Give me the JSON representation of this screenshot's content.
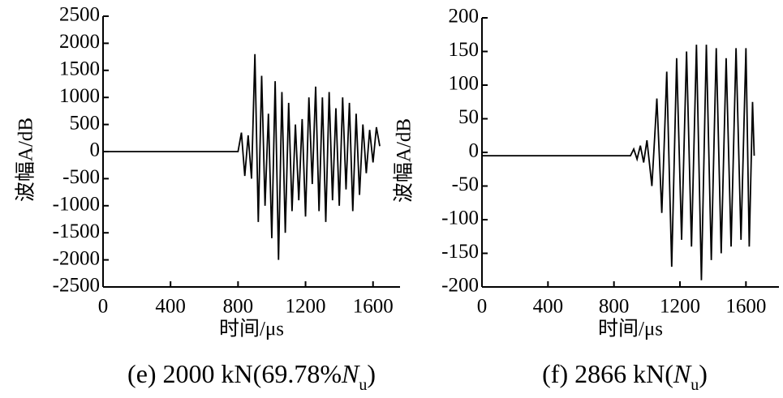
{
  "chart_data": [
    {
      "type": "line",
      "ylabel": "波幅A/dB",
      "xlabel": "时间/μs",
      "caption": [
        "(e) 2000 kN(69.78%",
        "N",
        "u",
        ")"
      ],
      "xlim": [
        0,
        1760
      ],
      "xticks": [
        0,
        400,
        800,
        1200,
        1600
      ],
      "ylim": [
        -2500,
        2500
      ],
      "yticks": [
        -2500,
        -2000,
        -1500,
        -1000,
        -500,
        0,
        500,
        1000,
        1500,
        2000,
        2500
      ],
      "series": [
        {
          "color": "#000000",
          "x": [
            0,
            800,
            820,
            840,
            860,
            880,
            900,
            920,
            940,
            960,
            980,
            1000,
            1020,
            1040,
            1060,
            1080,
            1100,
            1120,
            1140,
            1160,
            1180,
            1200,
            1220,
            1240,
            1260,
            1280,
            1300,
            1320,
            1340,
            1360,
            1380,
            1400,
            1420,
            1440,
            1460,
            1480,
            1500,
            1520,
            1540,
            1560,
            1580,
            1600,
            1620,
            1640
          ],
          "values": [
            0,
            0,
            350,
            -450,
            300,
            -500,
            1800,
            -1300,
            1400,
            -1000,
            700,
            -1600,
            1300,
            -2000,
            1100,
            -1500,
            900,
            -1100,
            500,
            -900,
            600,
            -1200,
            1000,
            -600,
            1200,
            -1100,
            1000,
            -1300,
            1100,
            -900,
            800,
            -1000,
            1000,
            -700,
            900,
            -1100,
            700,
            -800,
            500,
            -400,
            400,
            -200,
            450,
            100
          ]
        }
      ]
    },
    {
      "type": "line",
      "ylabel": "波幅A/dB",
      "xlabel": "时间/μs",
      "caption": [
        "(f) 2866 kN(",
        "N",
        "u",
        ")"
      ],
      "xlim": [
        0,
        1800
      ],
      "xticks": [
        0,
        400,
        800,
        1200,
        1600
      ],
      "ylim": [
        -200,
        200
      ],
      "yticks": [
        -200,
        -150,
        -100,
        -50,
        0,
        50,
        100,
        150,
        200
      ],
      "series": [
        {
          "color": "#000000",
          "x": [
            0,
            900,
            920,
            940,
            960,
            980,
            1000,
            1030,
            1060,
            1090,
            1120,
            1150,
            1180,
            1210,
            1240,
            1270,
            1300,
            1330,
            1360,
            1390,
            1420,
            1450,
            1480,
            1510,
            1540,
            1570,
            1600,
            1620,
            1640,
            1650
          ],
          "values": [
            -5,
            -5,
            5,
            -10,
            10,
            -15,
            18,
            -50,
            80,
            -90,
            120,
            -170,
            140,
            -130,
            150,
            -140,
            160,
            -190,
            160,
            -160,
            155,
            -150,
            140,
            -140,
            155,
            -130,
            155,
            -140,
            75,
            -5
          ]
        }
      ]
    }
  ]
}
